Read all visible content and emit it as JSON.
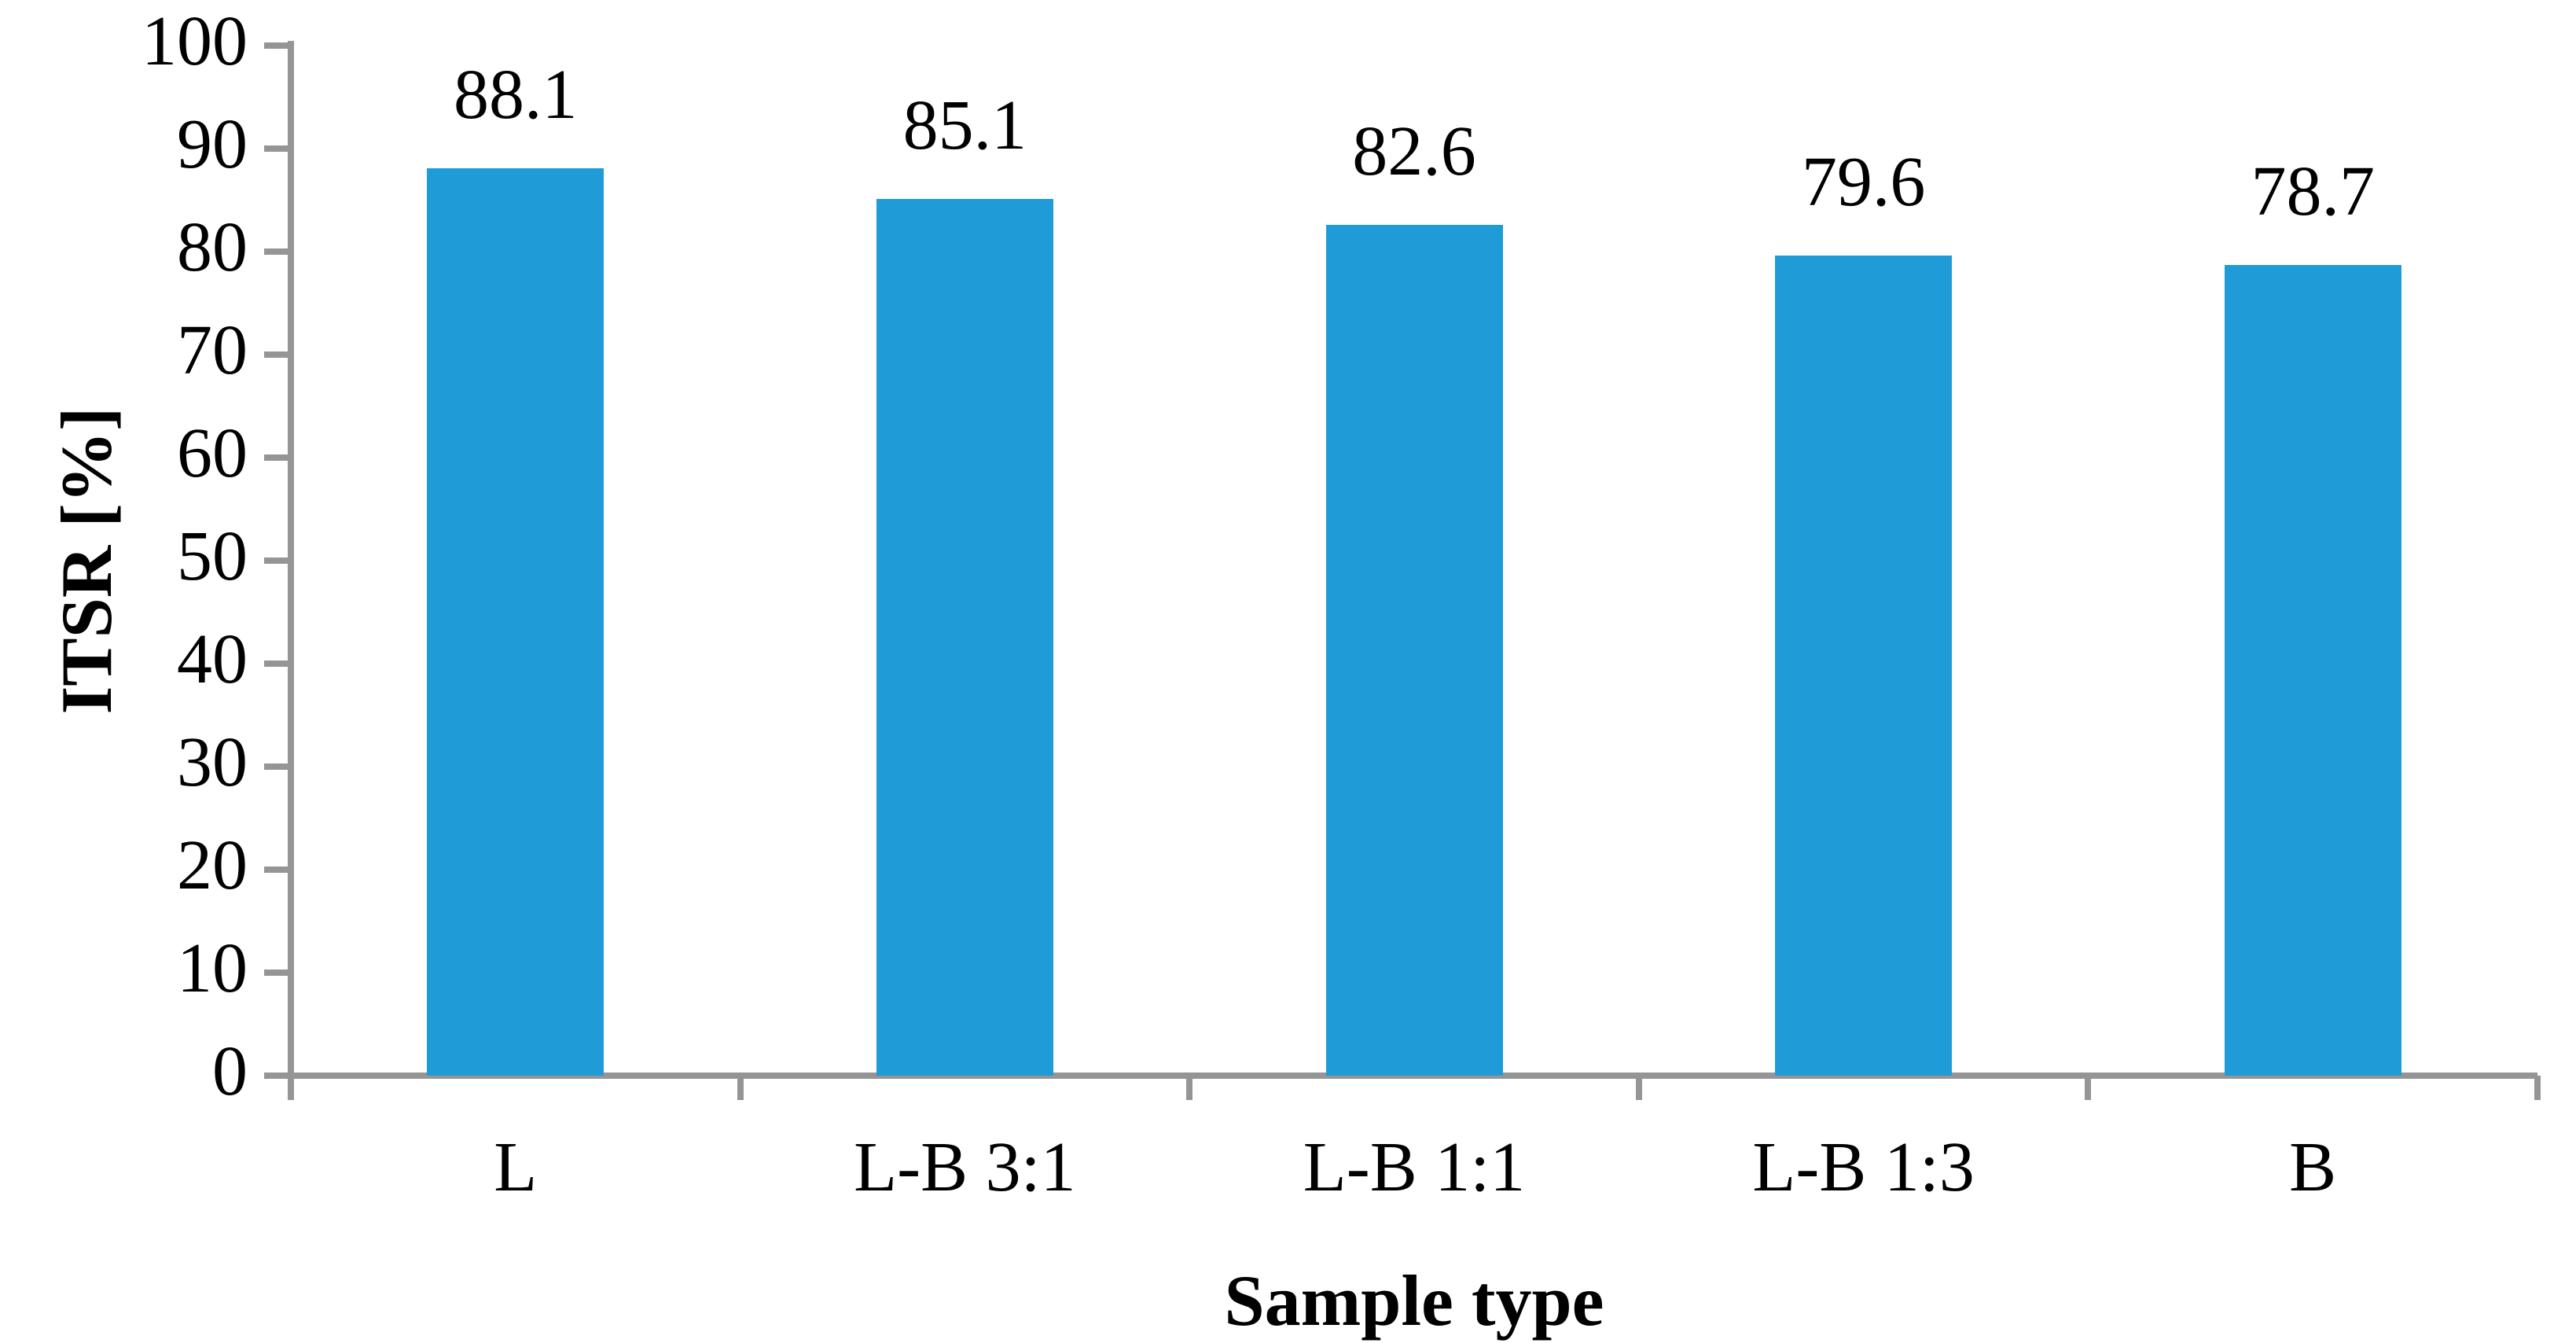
{
  "chart_data": {
    "type": "bar",
    "title": "",
    "xlabel": "Sample type",
    "ylabel": "ITSR [%]",
    "categories": [
      "L",
      "L-B 3:1",
      "L-B 1:1",
      "L-B 1:3",
      "B"
    ],
    "values": [
      88.1,
      85.1,
      82.6,
      79.6,
      78.7
    ],
    "ylim": [
      0,
      100
    ],
    "yticks": [
      0,
      10,
      20,
      30,
      40,
      50,
      60,
      70,
      80,
      90,
      100
    ],
    "grid": false,
    "legend_position": "none",
    "data_labels_position": "outside-end",
    "bar_color": "#1F9CD8",
    "axis_color": "#959595",
    "text_color": "#000000",
    "background_color": "#FFFFFF"
  }
}
